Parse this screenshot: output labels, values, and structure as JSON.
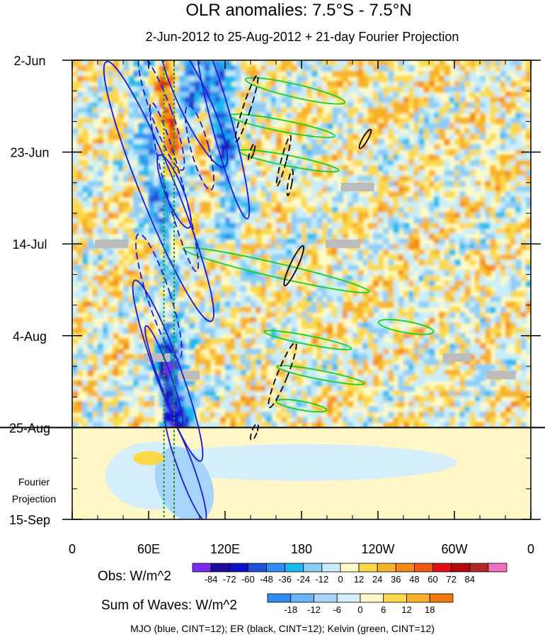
{
  "chart_data": {
    "type": "heatmap",
    "title": "OLR anomalies: 7.5°S - 7.5°N",
    "subtitle": "2-Jun-2012 to 25-Aug-2012 + 21-day Fourier Projection",
    "x_ticks": [
      "0",
      "60E",
      "120E",
      "180",
      "120W",
      "60W",
      "0"
    ],
    "x_range_deg_east": [
      0,
      360
    ],
    "y_ticks": [
      "2-Jun",
      "23-Jun",
      "14-Jul",
      "4-Aug",
      "25-Aug",
      "15-Sep"
    ],
    "y_range_days": [
      0,
      105
    ],
    "observation_end_day": 84,
    "projection_label": [
      "Fourier",
      "Projection"
    ],
    "mjo_line_lons": [
      72,
      80
    ],
    "obs_colorbar": {
      "label": "Obs: W/m^2",
      "ticks": [
        "-84",
        "-72",
        "-60",
        "-48",
        "-36",
        "-24",
        "-12",
        "0",
        "12",
        "24",
        "36",
        "48",
        "60",
        "72",
        "84"
      ],
      "colors": [
        "#7b2cf0",
        "#1e0b9c",
        "#1010c8",
        "#2050d8",
        "#2f8cf0",
        "#19b8f0",
        "#8ccdf8",
        "#c8eefc",
        "#fffac8",
        "#fbd84a",
        "#f7b028",
        "#f28a18",
        "#ee5a10",
        "#e01010",
        "#b40a0a",
        "#b02828",
        "#f070c0"
      ]
    },
    "waves_colorbar": {
      "label": "Sum of Waves: W/m^2",
      "ticks": [
        "-18",
        "-12",
        "-6",
        "0",
        "6",
        "12",
        "18"
      ],
      "colors": [
        "#2f8cf0",
        "#6cb2f8",
        "#a8d4fc",
        "#d4eefc",
        "#fff6c8",
        "#fbd84a",
        "#f7b028",
        "#f07810"
      ]
    },
    "footer": "MJO (blue, CINT=12); ER (black, CINT=12); Kelvin (green, CINT=12)",
    "contours": {
      "mjo": [
        {
          "lon": 95,
          "day": 9,
          "dlon": 12,
          "dday": 17,
          "angle": -25,
          "dashed": false
        },
        {
          "lon": 70,
          "day": 12,
          "dlon": 8,
          "dday": 14,
          "angle": -20,
          "dashed": true
        },
        {
          "lon": 68,
          "day": 30,
          "dlon": 14,
          "dday": 32,
          "angle": -22,
          "dashed": false
        },
        {
          "lon": 80,
          "day": 30,
          "dlon": 7,
          "dday": 9,
          "angle": -22,
          "dashed": false
        },
        {
          "lon": 80,
          "day": 29,
          "dlon": 7,
          "dday": 20,
          "angle": -15,
          "dashed": true
        },
        {
          "lon": 68,
          "day": 54,
          "dlon": 9,
          "dday": 15,
          "angle": -18,
          "dashed": true
        },
        {
          "lon": 75,
          "day": 71,
          "dlon": 10,
          "dday": 22,
          "angle": -20,
          "dashed": false
        },
        {
          "lon": 89,
          "day": 93,
          "dlon": 6,
          "dday": 13,
          "angle": -20,
          "dashed": false
        },
        {
          "lon": 72,
          "day": 72,
          "dlon": 5,
          "dday": 12,
          "angle": -20,
          "dashed": false
        },
        {
          "lon": 118,
          "day": 15,
          "dlon": 8,
          "dday": 22,
          "angle": -15,
          "dashed": false
        },
        {
          "lon": 100,
          "day": 20,
          "dlon": 7,
          "dday": 10,
          "angle": -15,
          "dashed": true
        }
      ],
      "er": [
        {
          "lon": 137,
          "day": 11,
          "dlon": 3,
          "dday": 8,
          "angle": 18,
          "dashed": true
        },
        {
          "lon": 141,
          "day": 21,
          "dlon": 1.5,
          "dday": 2,
          "angle": 18,
          "dashed": true
        },
        {
          "lon": 166,
          "day": 23,
          "dlon": 2,
          "dday": 6,
          "angle": 15,
          "dashed": true
        },
        {
          "lon": 171,
          "day": 28,
          "dlon": 1.5,
          "dday": 3,
          "angle": 10,
          "dashed": true
        },
        {
          "lon": 174,
          "day": 47,
          "dlon": 3,
          "dday": 5,
          "angle": 25,
          "dashed": false
        },
        {
          "lon": 165,
          "day": 72,
          "dlon": 4,
          "dday": 8,
          "angle": 22,
          "dashed": true
        },
        {
          "lon": 230,
          "day": 18,
          "dlon": 2,
          "dday": 2.5,
          "angle": 30,
          "dashed": false
        },
        {
          "lon": 143,
          "day": 85,
          "dlon": 2,
          "dday": 2,
          "angle": 20,
          "dashed": true
        }
      ],
      "kelvin": [
        {
          "lon": 175,
          "day": 7,
          "dlon": 40,
          "dday": 1.5,
          "angle": 13
        },
        {
          "lon": 165,
          "day": 15,
          "dlon": 42,
          "dday": 1.3,
          "angle": 11
        },
        {
          "lon": 170,
          "day": 23,
          "dlon": 40,
          "dday": 1.2,
          "angle": 11
        },
        {
          "lon": 160,
          "day": 48,
          "dlon": 75,
          "dday": 1.6,
          "angle": 13
        },
        {
          "lon": 185,
          "day": 64,
          "dlon": 35,
          "dday": 1.0,
          "angle": 11
        },
        {
          "lon": 195,
          "day": 72,
          "dlon": 35,
          "dday": 1.0,
          "angle": 11
        },
        {
          "lon": 262,
          "day": 61,
          "dlon": 22,
          "dday": 1.3,
          "angle": 10
        },
        {
          "lon": 180,
          "day": 79,
          "dlon": 20,
          "dday": 1.0,
          "angle": 10
        }
      ]
    },
    "missing_data_boxes": [
      {
        "lon0": 18,
        "lon1": 38,
        "day": 42
      },
      {
        "lon0": 38,
        "lon1": 44,
        "day": 42
      },
      {
        "lon0": 56,
        "lon1": 77,
        "day": 68
      },
      {
        "lon0": 83,
        "lon1": 100,
        "day": 72
      },
      {
        "lon0": 199,
        "lon1": 226,
        "day": 42
      },
      {
        "lon0": 211,
        "lon1": 237,
        "day": 29
      },
      {
        "lon0": 291,
        "lon1": 313,
        "day": 68
      },
      {
        "lon0": 325,
        "lon1": 348,
        "day": 72
      }
    ]
  }
}
